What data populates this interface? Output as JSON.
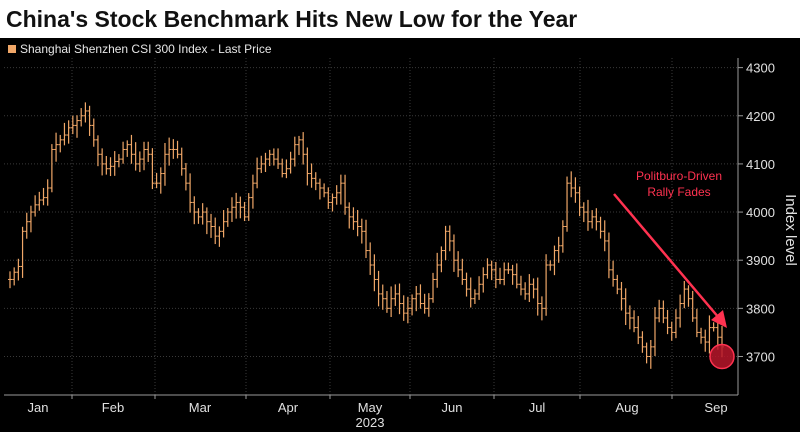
{
  "title": "China's Stock Benchmark Hits New Low for the Year",
  "legend_label": "Shanghai Shenzhen CSI 300 Index - Last Price",
  "colors": {
    "series": "#f0a768",
    "annotation": "#ff3250",
    "background": "#000000",
    "grid": "#3a3a3a"
  },
  "chart_data": {
    "type": "line",
    "style": "ohlc-bars",
    "title": "China's Stock Benchmark Hits New Low for the Year",
    "ylabel": "Index level",
    "xlabel": "",
    "year_label": "2023",
    "ylim": [
      3620,
      4320
    ],
    "yticks": [
      3700,
      3800,
      3900,
      4000,
      4100,
      4200,
      4300
    ],
    "x_ticks": [
      "Jan",
      "Feb",
      "Mar",
      "Apr",
      "May",
      "Jun",
      "Jul",
      "Aug",
      "Sep"
    ],
    "grid": true,
    "legend_position": "top-left",
    "series": [
      {
        "name": "Shanghai Shenzhen CSI 300 Index - Last Price",
        "values": [
          3860,
          3875,
          3887,
          3960,
          3980,
          4000,
          4015,
          4025,
          4030,
          4050,
          4130,
          4140,
          4150,
          4160,
          4175,
          4180,
          4190,
          4200,
          4210,
          4180,
          4150,
          4120,
          4100,
          4090,
          4095,
          4105,
          4110,
          4130,
          4140,
          4120,
          4100,
          4110,
          4130,
          4120,
          4060,
          4060,
          4080,
          4120,
          4130,
          4130,
          4120,
          4090,
          4060,
          4020,
          4000,
          3990,
          4000,
          3980,
          3970,
          3950,
          3960,
          3980,
          4000,
          4010,
          4020,
          4010,
          3990,
          4030,
          4060,
          4090,
          4100,
          4110,
          4120,
          4110,
          4100,
          4080,
          4090,
          4110,
          4140,
          4150,
          4120,
          4080,
          4070,
          4060,
          4050,
          4040,
          4020,
          4030,
          4040,
          4060,
          4010,
          3990,
          3980,
          3970,
          3960,
          3920,
          3890,
          3860,
          3830,
          3820,
          3800,
          3820,
          3830,
          3810,
          3790,
          3800,
          3820,
          3830,
          3810,
          3800,
          3820,
          3860,
          3890,
          3920,
          3960,
          3940,
          3900,
          3880,
          3860,
          3840,
          3820,
          3830,
          3850,
          3870,
          3890,
          3880,
          3860,
          3860,
          3880,
          3880,
          3870,
          3850,
          3840,
          3830,
          3850,
          3840,
          3810,
          3800,
          3890,
          3890,
          3920,
          3930,
          3970,
          4060,
          4050,
          4040,
          4010,
          4000,
          3980,
          3990,
          3980,
          3960,
          3940,
          3880,
          3860,
          3840,
          3820,
          3790,
          3780,
          3760,
          3740,
          3720,
          3700,
          3720,
          3780,
          3800,
          3780,
          3760,
          3750,
          3780,
          3810,
          3840,
          3820,
          3780,
          3750,
          3740,
          3730,
          3760,
          3760,
          3740,
          3720
        ]
      }
    ],
    "annotations": [
      {
        "text_lines": [
          "Politburo-Driven",
          "Rally Fades"
        ]
      }
    ],
    "markers": [
      {
        "label": "new-low-circle",
        "y": 3700
      }
    ]
  }
}
